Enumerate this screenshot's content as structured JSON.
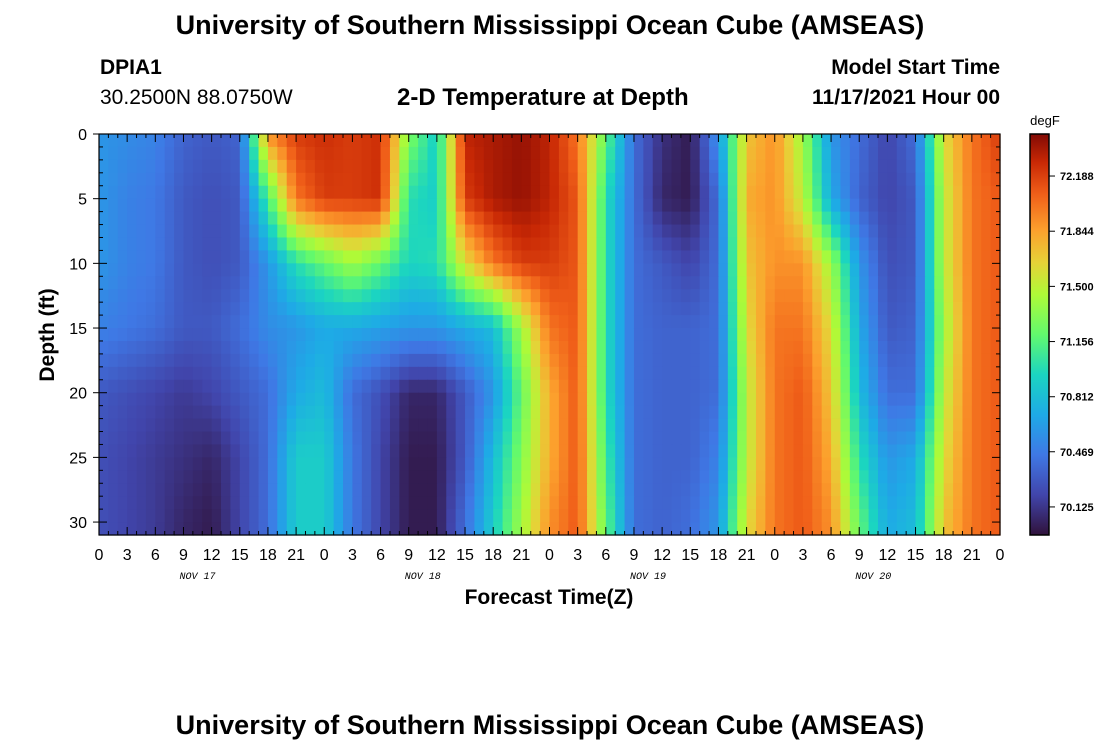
{
  "header": {
    "title": "University of Southern Mississippi Ocean Cube (AMSEAS)",
    "station": "DPIA1",
    "coords": "30.2500N  88.0750W",
    "subtitle": "2-D Temperature at Depth",
    "model_label": "Model Start Time",
    "model_time": "11/17/2021 Hour 00"
  },
  "footer": {
    "title": "University of Southern Mississippi Ocean Cube (AMSEAS)"
  },
  "chart_data": {
    "type": "heatmap",
    "title": "2-D Temperature at Depth",
    "xlabel": "Forecast Time(Z)",
    "ylabel": "Depth (ft)",
    "x_hours_range": [
      0,
      96
    ],
    "y_range": [
      0,
      31
    ],
    "x_ticks": [
      "0",
      "3",
      "6",
      "9",
      "12",
      "15",
      "18",
      "21",
      "0",
      "3",
      "6",
      "9",
      "12",
      "15",
      "18",
      "21",
      "0",
      "3",
      "6",
      "9",
      "12",
      "15",
      "18",
      "21",
      "0",
      "3",
      "6",
      "9",
      "12",
      "15",
      "18",
      "21",
      "0"
    ],
    "y_ticks": [
      "0",
      "5",
      "10",
      "15",
      "20",
      "25",
      "30"
    ],
    "y_tick_values": [
      0,
      5,
      10,
      15,
      20,
      25,
      30
    ],
    "day_labels": [
      "NOV 17",
      "NOV 18",
      "NOV 19",
      "NOV 20"
    ],
    "colorbar": {
      "unit": "degF",
      "range": [
        69.95,
        72.45
      ],
      "ticks": [
        "72.188",
        "71.844",
        "71.500",
        "71.156",
        "70.812",
        "70.469",
        "70.125"
      ],
      "tick_values": [
        72.188,
        71.844,
        71.5,
        71.156,
        70.812,
        70.469,
        70.125
      ]
    },
    "depth_levels": [
      0,
      5,
      10,
      15,
      20,
      25,
      30
    ],
    "hours": [
      0,
      3,
      6,
      9,
      12,
      15,
      18,
      21,
      24,
      27,
      30,
      33,
      36,
      39,
      42,
      45,
      48,
      51,
      54,
      57,
      60,
      63,
      66,
      69,
      72,
      75,
      78,
      81,
      84,
      87,
      90,
      93,
      96
    ],
    "temperature": [
      [
        70.6,
        70.55,
        70.5,
        70.35,
        70.3,
        70.35,
        71.9,
        72.2,
        72.25,
        72.2,
        72.25,
        71.3,
        70.9,
        72.3,
        72.35,
        72.4,
        72.3,
        72.0,
        71.2,
        70.4,
        70.1,
        70.0,
        70.6,
        71.7,
        71.9,
        71.4,
        70.6,
        70.4,
        70.2,
        70.4,
        71.6,
        72.0,
        72.2
      ],
      [
        70.6,
        70.5,
        70.45,
        70.3,
        70.25,
        70.3,
        71.1,
        72.0,
        72.2,
        72.2,
        72.25,
        71.0,
        70.9,
        72.2,
        72.35,
        72.4,
        72.3,
        72.1,
        71.0,
        70.4,
        70.05,
        70.0,
        70.4,
        71.8,
        71.9,
        71.5,
        70.7,
        70.35,
        70.2,
        70.3,
        71.5,
        72.0,
        72.1
      ],
      [
        70.6,
        70.5,
        70.45,
        70.3,
        70.25,
        70.3,
        70.6,
        71.0,
        71.2,
        71.4,
        71.2,
        70.95,
        71.0,
        71.6,
        72.0,
        72.2,
        72.2,
        72.1,
        71.0,
        70.4,
        70.3,
        70.2,
        70.4,
        71.7,
        71.9,
        71.9,
        71.4,
        70.6,
        70.25,
        70.3,
        71.5,
        72.0,
        72.1
      ],
      [
        70.5,
        70.45,
        70.4,
        70.3,
        70.3,
        70.4,
        70.55,
        70.6,
        70.7,
        70.7,
        70.65,
        70.6,
        70.6,
        70.7,
        70.8,
        71.4,
        72.0,
        72.1,
        71.0,
        70.4,
        70.35,
        70.35,
        70.4,
        71.6,
        72.0,
        72.0,
        71.6,
        70.7,
        70.3,
        70.35,
        71.4,
        72.0,
        72.1
      ],
      [
        70.3,
        70.25,
        70.2,
        70.15,
        70.2,
        70.3,
        70.4,
        70.7,
        70.8,
        70.4,
        70.25,
        70.05,
        70.05,
        70.3,
        70.6,
        71.2,
        71.8,
        72.1,
        71.0,
        70.4,
        70.35,
        70.35,
        70.4,
        71.5,
        72.0,
        72.1,
        71.7,
        70.8,
        70.4,
        70.4,
        71.5,
        72.0,
        72.1
      ],
      [
        70.25,
        70.2,
        70.15,
        70.1,
        70.05,
        70.2,
        70.4,
        70.9,
        70.9,
        70.45,
        70.2,
        70.0,
        70.0,
        70.3,
        70.8,
        71.3,
        71.8,
        72.1,
        71.1,
        70.4,
        70.35,
        70.35,
        70.5,
        71.5,
        72.0,
        72.1,
        71.8,
        71.0,
        70.6,
        70.7,
        71.6,
        72.0,
        72.1
      ],
      [
        70.25,
        70.2,
        70.15,
        70.05,
        70.0,
        70.2,
        70.4,
        70.9,
        70.9,
        70.45,
        70.2,
        70.0,
        70.0,
        70.4,
        70.9,
        71.4,
        71.9,
        72.1,
        71.2,
        70.4,
        70.35,
        70.4,
        70.6,
        71.6,
        72.0,
        72.1,
        71.9,
        71.2,
        70.7,
        70.8,
        71.7,
        72.0,
        72.1
      ]
    ]
  }
}
